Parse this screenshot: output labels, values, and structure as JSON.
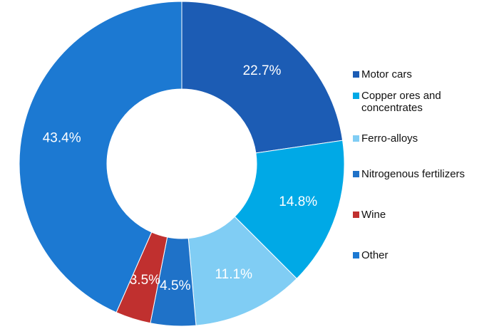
{
  "chart_data": {
    "type": "donut",
    "categories": [
      "Motor cars",
      "Copper ores and concentrates",
      "Ferro-alloys",
      "Nitrogenous fertilizers",
      "Wine",
      "Other"
    ],
    "values": [
      22.7,
      14.8,
      11.1,
      4.5,
      3.5,
      43.4
    ],
    "value_labels": [
      "22.7%",
      "14.8%",
      "11.1%",
      "4.5%",
      "3.5%",
      "43.4%"
    ],
    "colors": [
      "#1c5cb4",
      "#00a9e6",
      "#80cdf4",
      "#1f72c8",
      "#c0302f",
      "#1c79d2"
    ],
    "legend": "right"
  }
}
